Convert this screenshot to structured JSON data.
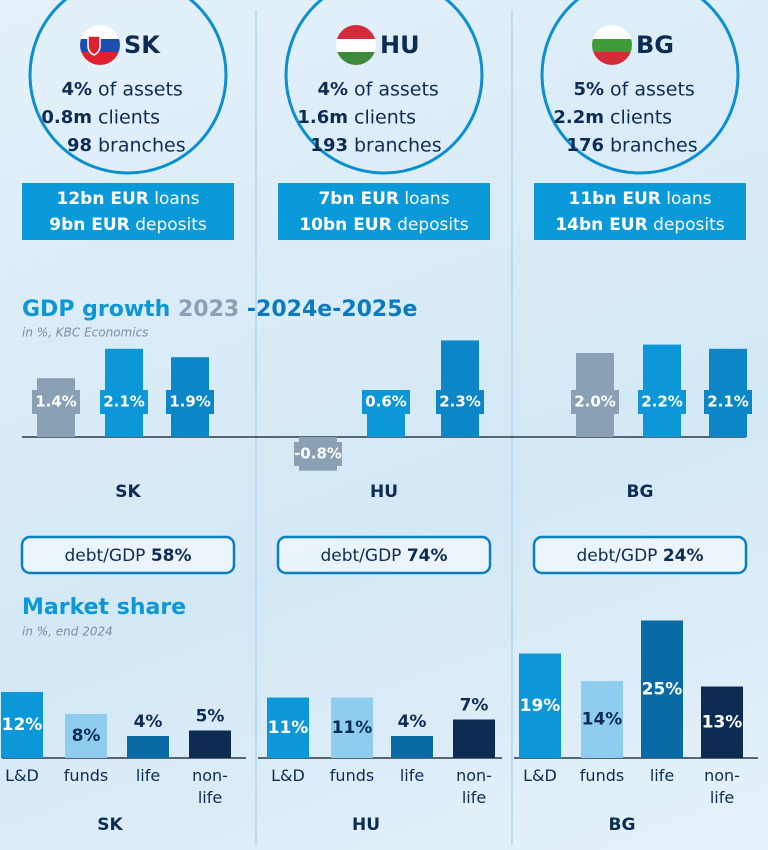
{
  "cards": [
    {
      "code": "SK",
      "stats": [
        {
          "value": "4%",
          "label": "of assets"
        },
        {
          "value": "0.8m",
          "label": "clients"
        },
        {
          "value": "98",
          "label": "branches"
        }
      ],
      "balances": [
        {
          "value": "12bn EUR",
          "label": "loans"
        },
        {
          "value": "9bn EUR",
          "label": "deposits"
        }
      ],
      "debt_label": "debt/GDP",
      "debt_value": "58%"
    },
    {
      "code": "HU",
      "stats": [
        {
          "value": "4%",
          "label": "of assets"
        },
        {
          "value": "1.6m",
          "label": "clients"
        },
        {
          "value": "193",
          "label": "branches"
        }
      ],
      "balances": [
        {
          "value": "7bn EUR",
          "label": "loans"
        },
        {
          "value": "10bn EUR",
          "label": "deposits"
        }
      ],
      "debt_label": "debt/GDP",
      "debt_value": "74%"
    },
    {
      "code": "BG",
      "stats": [
        {
          "value": "5%",
          "label": "of assets"
        },
        {
          "value": "2.2m",
          "label": "clients"
        },
        {
          "value": "176",
          "label": "branches"
        }
      ],
      "balances": [
        {
          "value": "11bn EUR",
          "label": "loans"
        },
        {
          "value": "14bn EUR",
          "label": "deposits"
        }
      ],
      "debt_label": "debt/GDP",
      "debt_value": "24%"
    }
  ],
  "chart_data": [
    {
      "type": "bar",
      "title": "GDP growth",
      "title_parts": [
        "2023",
        "-2024e-2025e"
      ],
      "subtitle": "in %, KBC Economics",
      "categories": [
        "SK",
        "HU",
        "BG"
      ],
      "series": [
        {
          "color": "#8aa0b5",
          "values": [
            1.4,
            -0.8,
            2.0
          ],
          "value_labels": [
            "1.4%",
            "-0.8%",
            "2.0%"
          ]
        },
        {
          "color": "#0b97d8",
          "values": [
            2.1,
            0.6,
            2.2
          ],
          "value_labels": [
            "2.1%",
            "0.6%",
            "2.2%"
          ]
        },
        {
          "color": "#0b86c6",
          "values": [
            1.9,
            2.3,
            2.1
          ],
          "value_labels": [
            "1.9%",
            "2.3%",
            "2.1%"
          ]
        }
      ]
    },
    {
      "type": "bar",
      "title": "Market share",
      "subtitle": "in %, end 2024",
      "groups": [
        "SK",
        "HU",
        "BG"
      ],
      "series": [
        {
          "name": "L&D",
          "color": "#0b97d8",
          "values": [
            12,
            11,
            19
          ],
          "value_labels": [
            "12%",
            "11%",
            "19%"
          ]
        },
        {
          "name": "funds",
          "color": "#8fcdf0",
          "values": [
            8,
            11,
            14
          ],
          "value_labels": [
            "8%",
            "11%",
            "14%"
          ]
        },
        {
          "name": "life",
          "color": "#0a6aa6",
          "values": [
            4,
            4,
            25
          ],
          "value_labels": [
            "4%",
            "4%",
            "25%"
          ]
        },
        {
          "name": "non-life",
          "color": "#0d2c54",
          "values": [
            5,
            7,
            13
          ],
          "value_labels": [
            "5%",
            "7%",
            "13%"
          ]
        }
      ]
    }
  ]
}
